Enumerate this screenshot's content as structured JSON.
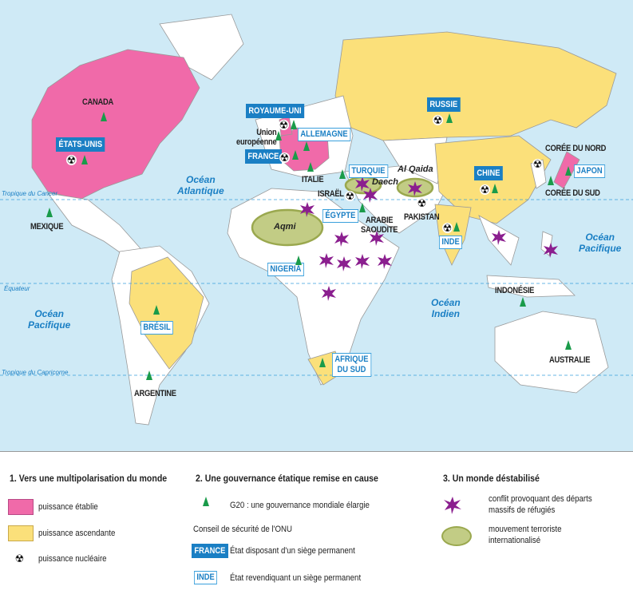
{
  "colors": {
    "established": "#f06aa9",
    "rising": "#fbe07a",
    "g20": "#1a9b4a",
    "conflict": "#8b1f8f",
    "terrorism": "#c2cc85",
    "ocean": "#cfeaf6",
    "permanent": "#1a7fc4"
  },
  "icons": {
    "g20": "green-triangle-icon",
    "nuclear": "radiation-icon",
    "conflict": "purple-star-icon",
    "terrorism": "olive-ellipse-icon"
  },
  "map": {
    "oceans": {
      "atlantique": [
        "Océan",
        "Atlantique"
      ],
      "pacifique_w": [
        "Océan",
        "Pacifique"
      ],
      "indien": [
        "Océan",
        "Indien"
      ],
      "pacifique_e": [
        "Océan",
        "Pacifique"
      ]
    },
    "lines": {
      "cancer": "Tropique du Cancer",
      "equateur": "Équateur",
      "capricorne": "Tropique du Capricorne"
    },
    "countries": {
      "canada": "CANADA",
      "usa": "ÉTATS-UNIS",
      "mexique": "MEXIQUE",
      "ru": "ROYAUME-UNI",
      "ue": [
        "Union",
        "européenne"
      ],
      "allemagne": "ALLEMAGNE",
      "france": "FRANCE",
      "italie": "ITALIE",
      "russie": "RUSSIE",
      "turquie": "TURQUIE",
      "israel": "ISRAËL",
      "egypte": "ÉGYPTE",
      "arabie": [
        "ARABIE",
        "SAOUDITE"
      ],
      "pakistan": "PAKISTAN",
      "inde": "INDE",
      "chine": "CHINE",
      "coree_nord": "CORÉE DU NORD",
      "japon": "JAPON",
      "coree_sud": "CORÉE DU SUD",
      "nigeria": "NIGERIA",
      "bresil": "BRÉSIL",
      "argentine": "ARGENTINE",
      "afrique_sud": [
        "AFRIQUE",
        "DU SUD"
      ],
      "indonesie": "INDONÉSIE",
      "australie": "AUSTRALIE"
    },
    "terror": {
      "aqmi": "Aqmi",
      "daech": "Daech",
      "alqaida": "Al Qaida"
    }
  },
  "legend": {
    "s1": {
      "title": "1. Vers une multipolarisation du monde",
      "established": "puissance établie",
      "rising": "puissance ascendante",
      "nuclear": "puissance nucléaire"
    },
    "s2": {
      "title": "2. Une gouvernance étatique remise en cause",
      "g20": "G20 : une gouvernance mondiale élargie",
      "unsc": "Conseil de sécurité de l'ONU",
      "perm_example": "FRANCE",
      "perm": "État disposant d'un siège permanent",
      "claim_example": "INDE",
      "claim": "État revendiquant un siège permanent"
    },
    "s3": {
      "title": "3. Un monde déstabilisé",
      "conflict": [
        "conflit provoquant des départs",
        "massifs de réfugiés"
      ],
      "terror": [
        "mouvement terroriste",
        "internationalisé"
      ]
    }
  }
}
